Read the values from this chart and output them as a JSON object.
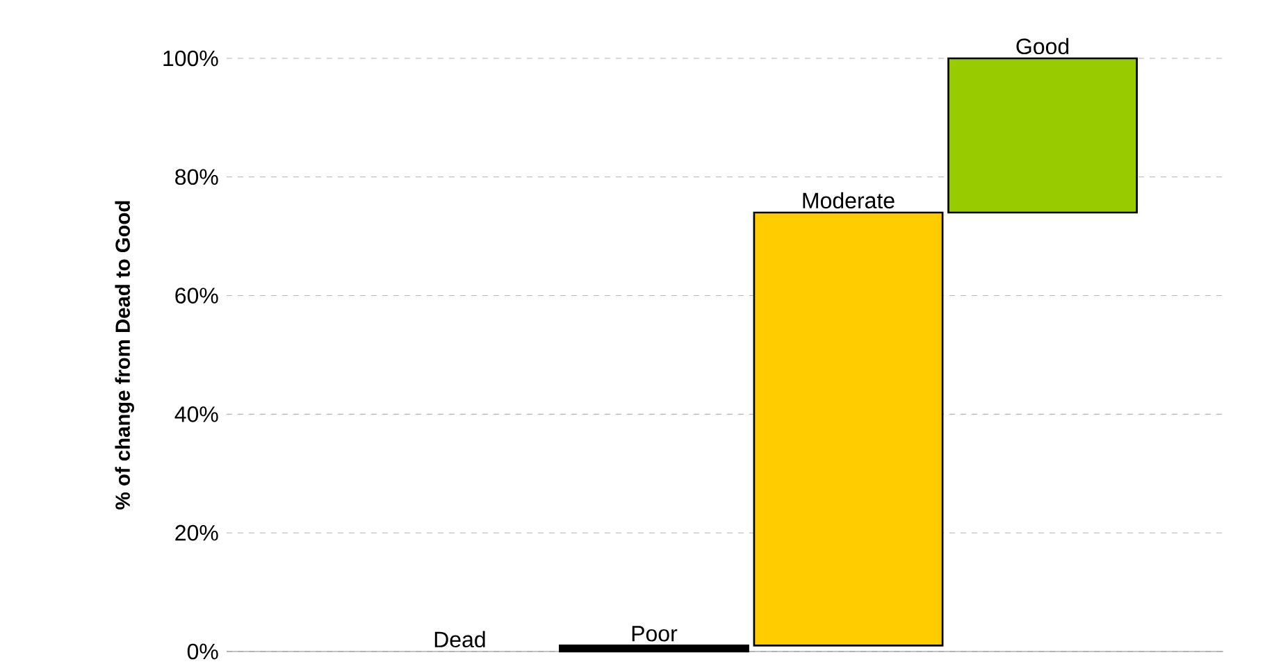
{
  "chart_data": {
    "type": "bar",
    "ylabel": "% of change from Dead to Good",
    "categories": [
      "Dead",
      "Poor",
      "Moderate",
      "Good"
    ],
    "values": [
      0,
      1,
      73,
      26
    ],
    "base": [
      null,
      0,
      1,
      74
    ],
    "colors": [
      "#000000",
      "#000000",
      "#ffcc00",
      "#99cc00"
    ],
    "ylim": [
      0,
      100
    ],
    "yticks": [
      {
        "value": 0,
        "label": "0%"
      },
      {
        "value": 20,
        "label": "20%"
      },
      {
        "value": 40,
        "label": "40%"
      },
      {
        "value": 60,
        "label": "60%"
      },
      {
        "value": 80,
        "label": "80%"
      },
      {
        "value": 100,
        "label": "100%"
      }
    ],
    "grid": "y"
  }
}
